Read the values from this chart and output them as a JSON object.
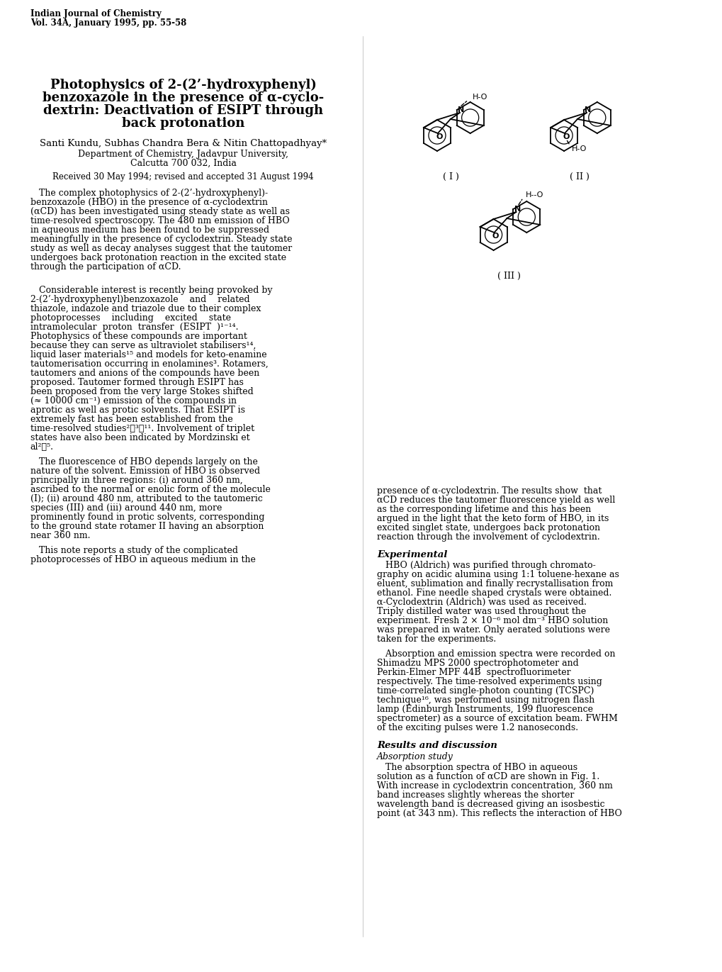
{
  "background_color": "#ffffff",
  "journal_line1": "Indian Journal of Chemistry",
  "journal_line2": "Vol. 34A, January 1995, pp. 55-58",
  "title_line1": "Photophysics of 2-(2’-hydroxyphenyl)",
  "title_line2": "benzoxazole in the presence of α-cyclo-",
  "title_line3": "dextrin: Deactivation of ESIPT through",
  "title_line4": "back protonation",
  "authors": "Santi Kundu, Subhas Chandra Bera & Nitin Chattopadhyay*",
  "affil1": "Department of Chemistry, Jadavpur University,",
  "affil2": "Calcutta 700 032, India",
  "received": "Received 30 May 1994; revised and accepted 31 August 1994",
  "abstract": "The complex photophysics of 2-(2’-hydroxyphenyl)-benzoxazole (HBO) in the presence of α-cyclodextrin (αCD) has been investigated using steady state as well as time-resolved spectroscopy. The 480 nm emission of HBO in aqueous medium has been found to be suppressed meaningfully in the presence of cyclodextrin. Steady state study as well as decay analyses suggest that the tautomer undergoes back protonation reaction in the excited state through the participation of αCD.",
  "para1": "Considerable interest is recently being provoked by 2-(2’-hydroxyphenyl)benzoxazole and related thiazole, indazole and triazole due to their complex photoprocesses including excited state intramolecular proton transfer (ESIPT )¹⁻¹⁴. Photophysics of these compounds are important because they can serve as ultraviolet stabilisers¹⁴, liquid laser materials¹⁵ and models for keto-enamine tautomerisation occurring in enolamines³. Rotamers, tautomers and anions of the compounds have been proposed. Tautomer formed through ESIPT has been proposed from the very large Stokes shifted (≈ 10000 cm⁻¹) emission of the compounds in aprotic as well as protic solvents. That ESIPT is extremely fast has been established from the time-resolved studies²‧³‧¹¹. Involvement of triplet states have also been indicated by Mordzinski et al²‧⁵.",
  "para2": "The fluorescence of HBO depends largely on the nature of the solvent. Emission of HBO is observed principally in three regions: (i) around 360 nm, ascribed to the normal or enolic form of the molecule (I); (ii) around 480 nm, attributed to the tautomeric species (III) and (iii) around 440 nm, more prominently found in protic solvents, corresponding to the ground state rotamer II having an absorption near 360 nm.",
  "para3": "This note reports a study of the complicated photoprocesses of HBO in aqueous medium in the",
  "right_para1": "presence of α-cyclodextrin. The results show that αCD reduces the tautomer fluorescence yield as well as the corresponding lifetime and this has been argued in the light that the keto form of HBO, in its excited singlet state, undergoes back protonation reaction through the involvement of cyclodextrin.",
  "exp_heading": "Experimental",
  "exp_para1": "HBO (Aldrich) was purified through chromatography on acidic alumina using 1:1 toluene-hexane as eluent, sublimation and finally recrystallisation from ethanol. Fine needle shaped crystals were obtained. α-Cyclodextrin (Aldrich) was used as received. Triply distilled water was used throughout the experiment. Fresh 2 × 10⁻⁶ mol dm⁻³ HBO solution was prepared in water. Only aerated solutions were taken for the experiments.",
  "exp_para2": "Absorption and emission spectra were recorded on Shimadzu MPS 2000 spectrophotometer and Perkin-Elmer MPF 44B spectrofluorimeter respectively. The time-resolved experiments using time-correlated single-photon counting (TCSPC) technique¹⁶, was performed using nitrogen flash lamp (Edinburgh Instruments, 199 fluorescence spectrometer) as a source of excitation beam. FWHM of the exciting pulses were 1.2 nanoseconds.",
  "results_heading": "Results and discussion",
  "abs_study_heading": "Absorption study",
  "results_para1": "The absorption spectra of HBO in aqueous solution as a function of αCD are shown in Fig. 1. With increase in cyclodextrin concentration, 360 nm band increases slightly whereas the shorter wavelength band is decreased giving an isosbestic point (at 343 nm). This reflects the interaction of HBO"
}
